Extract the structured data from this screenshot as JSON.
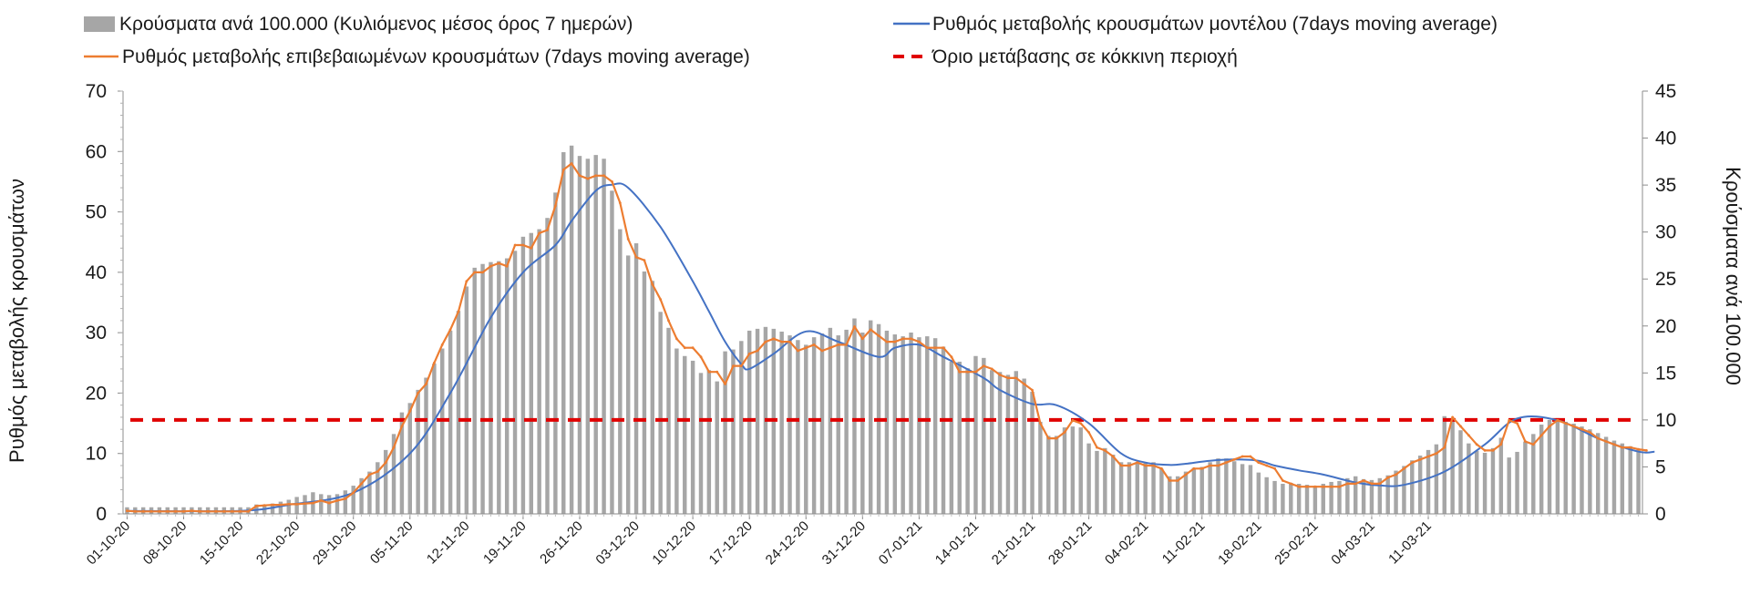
{
  "chart_data": {
    "type": "bar",
    "legend": {
      "placement": "top",
      "bars_label": "Κρούσματα ανά 100.000 (Κυλιόμενος μέσος όρος 7 ημερών)",
      "model_label": "Ρυθμός μεταβολής κρουσμάτων μοντέλου (7days moving average)",
      "confirmed_label": "Ρυθμός μεταβολής επιβεβαιωμένων κρουσμάτων (7days moving average)",
      "threshold_label": "Όριο μετάβασης σε κόκκινη περιοχή"
    },
    "y_left": {
      "label": "Ρυθμός μεταβολής κρουσμάτων",
      "range": [
        0,
        70
      ],
      "ticks": [
        "0",
        "10",
        "20",
        "30",
        "40",
        "50",
        "60",
        "70"
      ]
    },
    "y_right": {
      "label": "Κρούσματα ανά 100.000",
      "range": [
        0,
        45
      ],
      "ticks": [
        "0",
        "5",
        "10",
        "15",
        "20",
        "25",
        "30",
        "35",
        "40",
        "45"
      ]
    },
    "x_tick_labels": [
      "01-10-20",
      "08-10-20",
      "15-10-20",
      "22-10-20",
      "29-10-20",
      "05-11-20",
      "12-11-20",
      "19-11-20",
      "26-11-20",
      "03-12-20",
      "10-12-20",
      "17-12-20",
      "24-12-20",
      "31-12-20",
      "07-01-21",
      "14-01-21",
      "21-01-21",
      "28-01-21",
      "04-02-21",
      "11-02-21",
      "18-02-21",
      "25-02-21",
      "04-03-21",
      "11-03-21"
    ],
    "threshold_value_right_axis": 10,
    "colors": {
      "bars": "#a6a6a6",
      "model_line": "#4472c4",
      "confirmed_line": "#ed7d31",
      "threshold": "#e00000"
    },
    "series": [
      {
        "name": "Κρούσματα ανά 100.000 (Κυλιόμενος μέσος όρος 7 ημερών)",
        "axis": "right",
        "kind": "bar",
        "values": [
          0.7,
          0.7,
          0.7,
          0.7,
          0.7,
          0.7,
          0.7,
          0.7,
          0.7,
          0.7,
          0.7,
          0.7,
          0.7,
          0.7,
          0.7,
          0.7,
          1.0,
          1.0,
          1.1,
          1.3,
          1.5,
          1.8,
          2.0,
          2.3,
          2.1,
          2.0,
          2.1,
          2.5,
          3.0,
          3.8,
          4.5,
          5.5,
          6.8,
          8.5,
          10.8,
          11.8,
          13.2,
          14.5,
          16.0,
          17.6,
          19.5,
          21.6,
          24.2,
          26.2,
          26.6,
          26.8,
          26.9,
          27.2,
          28.0,
          29.5,
          29.9,
          30.3,
          31.5,
          34.2,
          38.5,
          39.2,
          38.1,
          37.8,
          38.2,
          37.8,
          34.4,
          30.3,
          27.5,
          28.8,
          25.8,
          24.8,
          21.5,
          19.8,
          17.6,
          16.8,
          16.3,
          15.0,
          15.3,
          14.1,
          17.3,
          17.5,
          18.4,
          19.5,
          19.7,
          19.9,
          19.7,
          19.4,
          19.0,
          18.5,
          18.0,
          18.8,
          19.2,
          19.8,
          19.0,
          19.6,
          20.8,
          19.3,
          20.6,
          20.2,
          19.5,
          19.1,
          18.9,
          19.3,
          18.8,
          18.9,
          18.7,
          17.8,
          16.2,
          16.2,
          15.5,
          16.8,
          16.6,
          15.3,
          15.1,
          14.8,
          15.2,
          14.4,
          13.0,
          9.8,
          8.3,
          8.3,
          9.2,
          9.3,
          9.2,
          7.5,
          6.7,
          7.0,
          6.3,
          5.5,
          5.5,
          5.5,
          5.5,
          5.5,
          4.8,
          4.0,
          4.0,
          4.5,
          4.9,
          5.0,
          5.5,
          5.9,
          5.9,
          5.6,
          5.3,
          5.2,
          4.4,
          3.9,
          3.5,
          3.2,
          3.3,
          3.2,
          3.1,
          3.0,
          3.2,
          3.4,
          3.5,
          3.8,
          4.0,
          3.7,
          3.6,
          3.8,
          4.1,
          4.6,
          5.1,
          5.7,
          6.2,
          6.8,
          7.4,
          10.4,
          10.0,
          8.9,
          7.5,
          6.7,
          6.5,
          7.0,
          8.1,
          6.0,
          6.6,
          7.7,
          8.5,
          9.5,
          10.0,
          10.2,
          9.8,
          9.6,
          9.3,
          9.0,
          8.6,
          8.2,
          7.8,
          7.5,
          7.2,
          6.9
        ]
      },
      {
        "name": "Ρυθμός μεταβολής κρουσμάτων μοντέλου (7days moving average)",
        "axis": "left",
        "kind": "line",
        "x_index": [
          0,
          14,
          20,
          28,
          35,
          40,
          45,
          49,
          53,
          55,
          58,
          60,
          62,
          66,
          70,
          72,
          74,
          76,
          77,
          80,
          84,
          88,
          93,
          95,
          98,
          101,
          106,
          108,
          112,
          115,
          119,
          123,
          126,
          129,
          131,
          134,
          137,
          140,
          142,
          145,
          148,
          152,
          155,
          158,
          163,
          168,
          172,
          177,
          182,
          187,
          189
        ],
        "values": [
          0.5,
          0.5,
          1.5,
          3.5,
          10.0,
          20.0,
          32.5,
          40.0,
          44.5,
          48.5,
          53.5,
          54.5,
          54.0,
          47.5,
          38.5,
          33.5,
          28.5,
          24.8,
          24.0,
          26.5,
          30.2,
          28.5,
          26.0,
          27.5,
          28.0,
          26.0,
          22.5,
          20.5,
          18.2,
          18.0,
          15.0,
          10.0,
          8.5,
          8.1,
          8.3,
          8.8,
          9.0,
          8.8,
          8.0,
          7.2,
          6.5,
          5.2,
          4.7,
          4.8,
          7.0,
          11.5,
          15.8,
          15.5,
          12.5,
          10.3,
          10.3
        ]
      },
      {
        "name": "Ρυθμός μεταβολής επιβεβαιωμένων κρουσμάτων (7days moving average)",
        "axis": "left",
        "kind": "line",
        "values": [
          0.5,
          0.4,
          0.4,
          0.4,
          0.4,
          0.4,
          0.4,
          0.4,
          0.5,
          0.4,
          0.4,
          0.4,
          0.4,
          0.4,
          0.4,
          0.4,
          1.3,
          1.4,
          1.5,
          1.5,
          1.6,
          1.6,
          1.7,
          1.8,
          2.2,
          1.8,
          2.2,
          2.5,
          3.5,
          5.0,
          6.5,
          7.0,
          8.5,
          11.0,
          14.5,
          17.0,
          20.0,
          21.5,
          25.0,
          28.0,
          30.5,
          33.5,
          38.5,
          40.0,
          40.0,
          41.0,
          41.5,
          41.0,
          44.5,
          44.5,
          44.0,
          46.5,
          47.0,
          51.0,
          57.0,
          58.0,
          56.0,
          55.5,
          56.0,
          56.0,
          55.0,
          51.5,
          45.5,
          42.5,
          42.0,
          38.0,
          35.5,
          32.0,
          29.0,
          27.5,
          27.5,
          26.0,
          23.5,
          23.5,
          21.5,
          24.5,
          24.5,
          26.5,
          27.0,
          28.5,
          29.0,
          28.5,
          28.5,
          27.0,
          27.5,
          28.0,
          27.0,
          27.5,
          28.0,
          28.0,
          31.0,
          29.0,
          30.5,
          29.5,
          28.5,
          28.5,
          29.0,
          29.0,
          28.5,
          27.5,
          27.5,
          27.5,
          26.0,
          23.5,
          23.5,
          23.5,
          24.5,
          24.0,
          23.0,
          22.5,
          22.5,
          21.5,
          20.5,
          15.0,
          12.5,
          12.5,
          13.5,
          15.5,
          15.0,
          13.5,
          11.0,
          10.5,
          9.5,
          8.0,
          8.0,
          8.5,
          8.0,
          8.0,
          7.5,
          5.5,
          5.5,
          6.5,
          7.5,
          7.5,
          8.0,
          8.0,
          8.5,
          9.0,
          9.5,
          9.5,
          8.5,
          8.0,
          7.5,
          5.5,
          5.0,
          4.5,
          4.5,
          4.5,
          4.5,
          4.5,
          4.5,
          5.0,
          5.0,
          5.5,
          5.0,
          5.0,
          6.0,
          6.5,
          7.5,
          8.5,
          9.0,
          9.5,
          10.0,
          11.0,
          16.0,
          14.5,
          13.0,
          11.5,
          10.5,
          10.5,
          11.5,
          15.5,
          15.0,
          12.0,
          11.5,
          13.0,
          14.5,
          15.5,
          15.0,
          14.5,
          14.0,
          13.5,
          12.5,
          12.0,
          11.5,
          11.0,
          11.0,
          10.7,
          10.5
        ]
      }
    ]
  }
}
